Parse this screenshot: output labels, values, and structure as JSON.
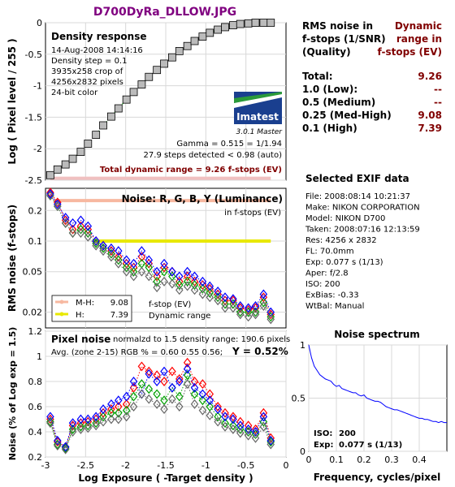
{
  "title": "D700DyRa_DLLOW.JPG",
  "colors": {
    "title": "#800080",
    "dark_red": "#800000",
    "grid": "#d8d8d8",
    "red": "#ff0000",
    "green": "#00a000",
    "blue": "#0000ff",
    "gray": "#666666",
    "mh_line": "#f7b8a0",
    "h_line": "#e8e800",
    "spectrum": "#0000ff"
  },
  "summary": {
    "header_left": [
      "RMS noise in",
      "f-stops (1/SNR)",
      "(Quality)"
    ],
    "header_right": [
      "Dynamic",
      "range in",
      "f-stops (EV)"
    ],
    "rows": [
      {
        "label": "Total:",
        "value": "9.26"
      },
      {
        "label": "1.0   (Low):",
        "value": "--"
      },
      {
        "label": "0.5   (Medium)",
        "value": "--"
      },
      {
        "label": "0.25 (Med-High)",
        "value": "9.08"
      },
      {
        "label": "0.1   (High)",
        "value": "7.39"
      }
    ]
  },
  "exif": {
    "title": "Selected EXIF data",
    "lines": [
      "File:  2008:08:14 10:21:37",
      "Make:  NIKON CORPORATION",
      "Model: NIKON D700",
      "Taken: 2008:07:16 12:13:59",
      "Res:   4256 x 2832",
      "FL:    70.0mm",
      "Exp:   0.077 s  (1/13)",
      "Aper:  f/2.8",
      "ISO:   200",
      "ExBias: -0.33",
      "WtBal:  Manual"
    ]
  },
  "logo": {
    "brand": "Imatest",
    "version": "3.0.1  Master"
  },
  "chart_data": [
    {
      "name": "density",
      "type": "scatter",
      "title": "Density response",
      "info": [
        "14-Aug-2008 14:14:16",
        "Density step = 0.1",
        "3935x258 crop of",
        "4256x2832 pixels",
        "24-bit color"
      ],
      "ylabel": "Log ( Pixel level / 255 )",
      "xlim": [
        -3,
        0
      ],
      "ylim": [
        -2.5,
        0
      ],
      "yticks": [
        "0",
        "-0.5",
        "-1",
        "-1.5",
        "-2",
        "-2.5"
      ],
      "gamma_text": "Gamma = 0.515 = 1/1.94",
      "steps_text": "27.9 steps detected < 0.98 (auto)",
      "total_text": "Total dynamic range = 9.26 f-stops (EV)",
      "x": [
        -2.94,
        -2.85,
        -2.75,
        -2.66,
        -2.56,
        -2.47,
        -2.37,
        -2.28,
        -2.18,
        -2.09,
        -1.99,
        -1.9,
        -1.8,
        -1.71,
        -1.61,
        -1.52,
        -1.42,
        -1.33,
        -1.23,
        -1.14,
        -1.04,
        -0.95,
        -0.85,
        -0.76,
        -0.66,
        -0.57,
        -0.47,
        -0.38,
        -0.28,
        -0.19
      ],
      "y": [
        -2.42,
        -2.33,
        -2.25,
        -2.16,
        -2.05,
        -1.92,
        -1.78,
        -1.63,
        -1.49,
        -1.36,
        -1.22,
        -1.1,
        -0.98,
        -0.86,
        -0.75,
        -0.65,
        -0.55,
        -0.45,
        -0.37,
        -0.29,
        -0.22,
        -0.16,
        -0.11,
        -0.07,
        -0.04,
        -0.02,
        -0.01,
        0,
        0,
        0
      ]
    },
    {
      "name": "noise_fstops",
      "type": "line",
      "title": "Noise: R, G, B, Y (Luminance)",
      "subtitle": "in f-stops (EV)",
      "ylabel": "RMS noise (f-stops)",
      "yscale": "log",
      "xlim": [
        -3,
        0
      ],
      "ylim": [
        0.014,
        0.33
      ],
      "yticks": [
        "0.2",
        "0.1",
        "0.05",
        "0.02"
      ],
      "ytick_values": [
        0.2,
        0.1,
        0.05,
        0.02
      ],
      "legend": [
        {
          "label": "M-H:",
          "value": "9.08"
        },
        {
          "label": "H:",
          "value": "7.39"
        }
      ],
      "legend_right": [
        "f-stop (EV)",
        "Dynamic range"
      ],
      "ranges": [
        {
          "name": "M-H",
          "value": 0.25,
          "x_start": -2.9,
          "x_end": -0.19
        },
        {
          "name": "H",
          "value": 0.1,
          "x_start": -2.41,
          "x_end": -0.19
        }
      ],
      "x": [
        -2.94,
        -2.85,
        -2.75,
        -2.66,
        -2.56,
        -2.47,
        -2.37,
        -2.28,
        -2.18,
        -2.09,
        -1.99,
        -1.9,
        -1.8,
        -1.71,
        -1.61,
        -1.52,
        -1.42,
        -1.33,
        -1.23,
        -1.14,
        -1.04,
        -0.95,
        -0.85,
        -0.76,
        -0.66,
        -0.57,
        -0.47,
        -0.38,
        -0.28,
        -0.19
      ],
      "series": [
        {
          "name": "R",
          "values": [
            0.3,
            0.24,
            0.16,
            0.13,
            0.14,
            0.13,
            0.1,
            0.09,
            0.08,
            0.07,
            0.06,
            0.055,
            0.07,
            0.06,
            0.045,
            0.055,
            0.05,
            0.04,
            0.045,
            0.04,
            0.037,
            0.034,
            0.03,
            0.026,
            0.026,
            0.022,
            0.021,
            0.022,
            0.028,
            0.019
          ]
        },
        {
          "name": "G",
          "values": [
            0.28,
            0.22,
            0.15,
            0.12,
            0.13,
            0.12,
            0.095,
            0.085,
            0.075,
            0.065,
            0.055,
            0.05,
            0.06,
            0.055,
            0.04,
            0.05,
            0.045,
            0.037,
            0.04,
            0.037,
            0.034,
            0.031,
            0.028,
            0.024,
            0.024,
            0.02,
            0.02,
            0.02,
            0.025,
            0.018
          ]
        },
        {
          "name": "B",
          "values": [
            0.29,
            0.23,
            0.17,
            0.15,
            0.16,
            0.14,
            0.1,
            0.09,
            0.085,
            0.08,
            0.065,
            0.06,
            0.08,
            0.065,
            0.05,
            0.06,
            0.05,
            0.045,
            0.05,
            0.045,
            0.04,
            0.036,
            0.032,
            0.028,
            0.027,
            0.023,
            0.022,
            0.023,
            0.03,
            0.02
          ]
        },
        {
          "name": "Y",
          "values": [
            0.28,
            0.22,
            0.15,
            0.12,
            0.12,
            0.11,
            0.09,
            0.08,
            0.07,
            0.06,
            0.05,
            0.045,
            0.05,
            0.045,
            0.035,
            0.04,
            0.038,
            0.033,
            0.036,
            0.033,
            0.03,
            0.028,
            0.026,
            0.022,
            0.022,
            0.019,
            0.018,
            0.019,
            0.023,
            0.017
          ]
        }
      ]
    },
    {
      "name": "pixel_noise",
      "type": "line",
      "title": "Pixel noise",
      "title_rest": "normalzd to 1.5 density range: 190.6 pixels",
      "avg_text": "Avg. (zone 2-15) RGB % = 0.60  0.55  0.56;",
      "y_text": "Y = 0.52%",
      "xlabel": "Log Exposure ( -Target density )",
      "ylabel": "Noise (% of Log exp = 1.5)",
      "xlim": [
        -3,
        0
      ],
      "ylim": [
        0.2,
        1.2
      ],
      "xticks": [
        "-3",
        "-2.5",
        "-2",
        "-1.5",
        "-1",
        "-0.5",
        "0"
      ],
      "yticks": [
        "1.2",
        "1",
        "0.8",
        "0.6",
        "0.4",
        "0.2"
      ],
      "x": [
        -2.94,
        -2.85,
        -2.75,
        -2.66,
        -2.56,
        -2.47,
        -2.37,
        -2.28,
        -2.18,
        -2.09,
        -1.99,
        -1.9,
        -1.8,
        -1.71,
        -1.61,
        -1.52,
        -1.42,
        -1.33,
        -1.23,
        -1.14,
        -1.04,
        -0.95,
        -0.85,
        -0.76,
        -0.66,
        -0.57,
        -0.47,
        -0.38,
        -0.28,
        -0.19
      ],
      "series": [
        {
          "name": "R",
          "values": [
            0.5,
            0.32,
            0.28,
            0.45,
            0.47,
            0.48,
            0.5,
            0.55,
            0.58,
            0.6,
            0.62,
            0.75,
            0.92,
            0.88,
            0.85,
            0.8,
            0.88,
            0.82,
            0.95,
            0.8,
            0.78,
            0.7,
            0.6,
            0.55,
            0.52,
            0.48,
            0.45,
            0.42,
            0.55,
            0.35
          ]
        },
        {
          "name": "G",
          "values": [
            0.48,
            0.3,
            0.27,
            0.42,
            0.44,
            0.45,
            0.47,
            0.52,
            0.55,
            0.55,
            0.57,
            0.68,
            0.78,
            0.74,
            0.7,
            0.65,
            0.75,
            0.68,
            0.85,
            0.7,
            0.65,
            0.6,
            0.52,
            0.47,
            0.45,
            0.42,
            0.4,
            0.38,
            0.48,
            0.32
          ]
        },
        {
          "name": "B",
          "values": [
            0.52,
            0.33,
            0.28,
            0.47,
            0.5,
            0.5,
            0.52,
            0.58,
            0.62,
            0.65,
            0.68,
            0.8,
            0.7,
            0.86,
            0.8,
            0.88,
            0.75,
            0.8,
            0.9,
            0.75,
            0.7,
            0.65,
            0.58,
            0.52,
            0.5,
            0.45,
            0.42,
            0.4,
            0.52,
            0.33
          ]
        },
        {
          "name": "Y",
          "values": [
            0.47,
            0.29,
            0.26,
            0.4,
            0.42,
            0.43,
            0.45,
            0.48,
            0.5,
            0.5,
            0.52,
            0.6,
            0.7,
            0.66,
            0.62,
            0.58,
            0.66,
            0.6,
            0.78,
            0.62,
            0.57,
            0.53,
            0.48,
            0.44,
            0.42,
            0.39,
            0.37,
            0.35,
            0.44,
            0.3
          ]
        }
      ]
    },
    {
      "name": "spectrum",
      "type": "line",
      "title": "Noise spectrum",
      "xlabel": "Frequency, cycles/pixel",
      "xlim": [
        0,
        0.5
      ],
      "ylim": [
        0,
        1
      ],
      "xticks": [
        "0",
        "0.1",
        "0.2",
        "0.3",
        "0.4"
      ],
      "yticks": [
        "1",
        "0.5",
        "0"
      ],
      "iso_label": "ISO:",
      "iso_value": "200",
      "exp_label": "Exp:",
      "exp_value": "0.077 s  (1/13)",
      "x": [
        0,
        0.01,
        0.02,
        0.03,
        0.04,
        0.05,
        0.06,
        0.07,
        0.08,
        0.09,
        0.1,
        0.11,
        0.12,
        0.13,
        0.14,
        0.15,
        0.16,
        0.17,
        0.18,
        0.19,
        0.2,
        0.21,
        0.22,
        0.23,
        0.24,
        0.25,
        0.26,
        0.27,
        0.28,
        0.29,
        0.3,
        0.31,
        0.32,
        0.33,
        0.34,
        0.35,
        0.36,
        0.37,
        0.38,
        0.39,
        0.4,
        0.41,
        0.42,
        0.43,
        0.44,
        0.45,
        0.46,
        0.47,
        0.48,
        0.49,
        0.5
      ],
      "y": [
        1.0,
        0.88,
        0.8,
        0.76,
        0.72,
        0.7,
        0.68,
        0.67,
        0.66,
        0.63,
        0.61,
        0.62,
        0.59,
        0.58,
        0.57,
        0.56,
        0.55,
        0.55,
        0.53,
        0.52,
        0.53,
        0.5,
        0.49,
        0.48,
        0.47,
        0.47,
        0.46,
        0.44,
        0.42,
        0.41,
        0.4,
        0.39,
        0.39,
        0.38,
        0.37,
        0.36,
        0.35,
        0.34,
        0.33,
        0.32,
        0.31,
        0.31,
        0.3,
        0.3,
        0.29,
        0.28,
        0.28,
        0.27,
        0.28,
        0.27,
        0.27
      ]
    }
  ]
}
